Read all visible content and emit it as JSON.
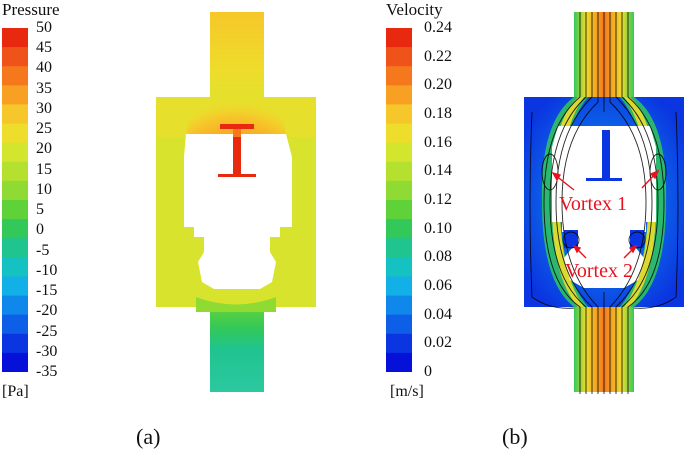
{
  "pressure_legend": {
    "title": "Pressure",
    "ticks": [
      "50",
      "45",
      "40",
      "35",
      "30",
      "25",
      "20",
      "15",
      "10",
      "5",
      "0",
      "-5",
      "-10",
      "-15",
      "-20",
      "-25",
      "-30",
      "-35"
    ],
    "unit": "[Pa]",
    "colors": [
      "#e8280f",
      "#f0531a",
      "#f5781d",
      "#f8a023",
      "#f6c72a",
      "#eedd2b",
      "#d3e52d",
      "#b4e02f",
      "#8fdb33",
      "#5fd23a",
      "#33c85a",
      "#1fc48f",
      "#15c2c2",
      "#13b0e8",
      "#1087ea",
      "#0d5fe8",
      "#0a35e0",
      "#0511d8"
    ]
  },
  "velocity_legend": {
    "title": "Velocity",
    "ticks": [
      "0.24",
      "0.22",
      "0.20",
      "0.18",
      "0.16",
      "0.14",
      "0.12",
      "0.10",
      "0.08",
      "0.06",
      "0.04",
      "0.02",
      "0"
    ],
    "unit": "[m/s]",
    "colors": [
      "#e8280f",
      "#f0531a",
      "#f5781d",
      "#f8a023",
      "#f6c72a",
      "#eedd2b",
      "#d3e52d",
      "#b4e02f",
      "#8fdb33",
      "#5fd23a",
      "#33c85a",
      "#1fc48f",
      "#15c2c2",
      "#13b0e8",
      "#1087ea",
      "#0d5fe8",
      "#0a35e0",
      "#0511d8"
    ]
  },
  "annotations": {
    "vortex1": "Vortex 1",
    "vortex2": "Vortex 2"
  },
  "captions": {
    "a": "(a)",
    "b": "(b)"
  }
}
